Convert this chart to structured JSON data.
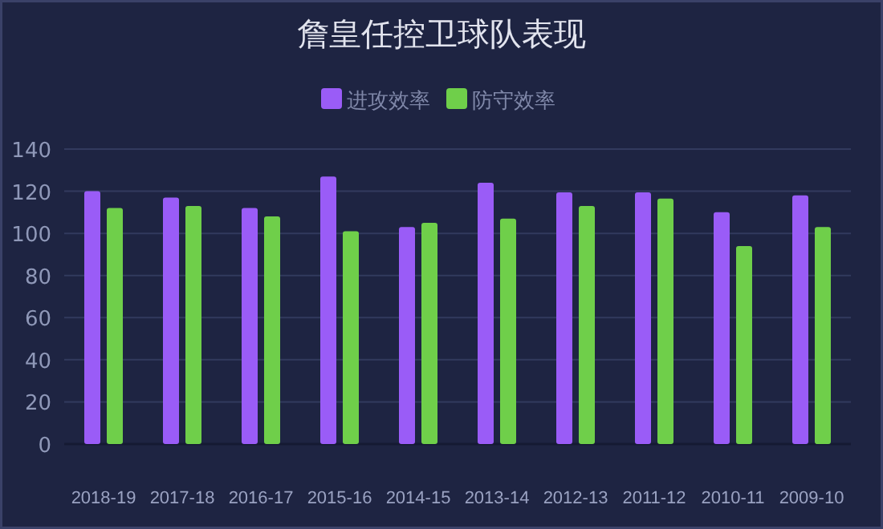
{
  "chart_data": {
    "type": "bar",
    "title": "詹皇任控卫球队表现",
    "categories": [
      "2018-19",
      "2017-18",
      "2016-17",
      "2015-16",
      "2014-15",
      "2013-14",
      "2012-13",
      "2011-12",
      "2010-11",
      "2009-10"
    ],
    "series": [
      {
        "name": "进攻效率",
        "color": "#9a5cf7",
        "values": [
          120,
          117,
          112,
          127,
          103,
          124,
          119.5,
          119.5,
          110,
          118
        ]
      },
      {
        "name": "防守效率",
        "color": "#6fcf4a",
        "values": [
          112,
          113,
          108,
          101,
          105,
          107,
          113,
          116.5,
          94,
          103
        ]
      }
    ],
    "ylim": [
      0,
      140
    ],
    "yticks": [
      0,
      20,
      40,
      60,
      80,
      100,
      120,
      140
    ],
    "grid": "y",
    "legend": "top"
  }
}
